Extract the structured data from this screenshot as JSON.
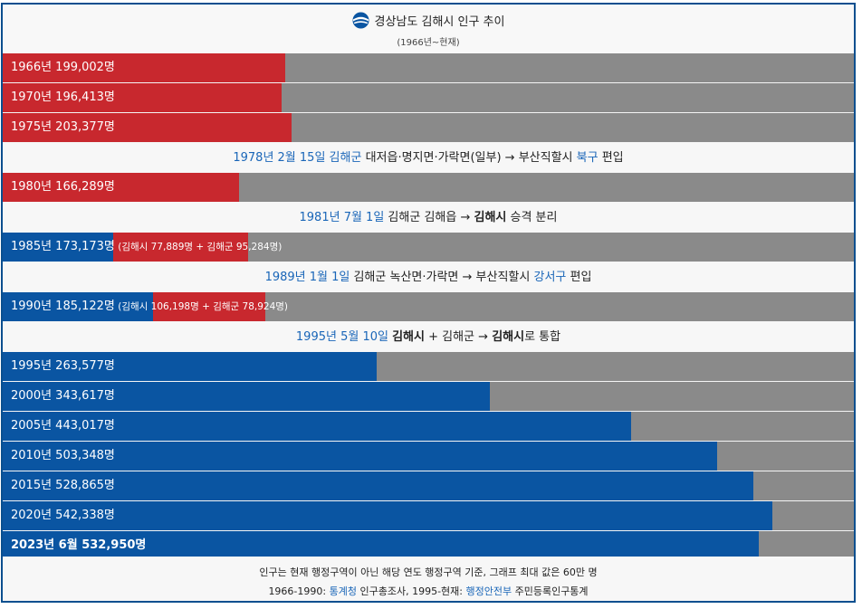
{
  "chart_data": {
    "type": "bar",
    "title": "경상남도 김해시 인구 추이",
    "subtitle": "(1966년~현재)",
    "xmax": 600000,
    "colors": {
      "gimhae_gun": "#c8282e",
      "gimhae_si": "#0a55a2",
      "track": "#8a8a8a"
    },
    "rows": [
      {
        "kind": "bar",
        "label": "1966년 199,002명",
        "value": 199002,
        "color": "#c8282e"
      },
      {
        "kind": "bar",
        "label": "1970년 196,413명",
        "value": 196413,
        "color": "#c8282e"
      },
      {
        "kind": "bar",
        "label": "1975년 203,377명",
        "value": 203377,
        "color": "#c8282e"
      },
      {
        "kind": "note",
        "parts": [
          {
            "t": "1978년 2월 15일",
            "c": "blue"
          },
          {
            "t": " "
          },
          {
            "t": "김해군",
            "c": "blue"
          },
          {
            "t": " 대저읍·명지면·가락면(일부) → 부산직할시 "
          },
          {
            "t": "북구",
            "c": "blue"
          },
          {
            "t": " 편입"
          }
        ]
      },
      {
        "kind": "bar",
        "label": "1980년 166,289명",
        "value": 166289,
        "color": "#c8282e"
      },
      {
        "kind": "note",
        "parts": [
          {
            "t": "1981년 7월 1일",
            "c": "blue"
          },
          {
            "t": " 김해군 김해읍 → "
          },
          {
            "t": "김해시",
            "c": "b"
          },
          {
            "t": " 승격 분리"
          }
        ]
      },
      {
        "kind": "stack",
        "label": "1985년 173,173명",
        "sub": "(김해시 77,889명 + 김해군 95,284명)",
        "segments": [
          {
            "value": 77889,
            "color": "#0a55a2"
          },
          {
            "value": 95284,
            "color": "#c8282e"
          }
        ]
      },
      {
        "kind": "note",
        "parts": [
          {
            "t": "1989년 1월 1일",
            "c": "blue"
          },
          {
            "t": " 김해군 녹산면·가락면 → 부산직할시 "
          },
          {
            "t": "강서구",
            "c": "blue"
          },
          {
            "t": " 편입"
          }
        ]
      },
      {
        "kind": "stack",
        "label": "1990년 185,122명",
        "sub": "(김해시 106,198명 + 김해군 78,924명)",
        "segments": [
          {
            "value": 106198,
            "color": "#0a55a2"
          },
          {
            "value": 78924,
            "color": "#c8282e"
          }
        ]
      },
      {
        "kind": "note",
        "parts": [
          {
            "t": "1995년 5월 10일",
            "c": "blue"
          },
          {
            "t": " "
          },
          {
            "t": "김해시",
            "c": "b"
          },
          {
            "t": " + 김해군 → "
          },
          {
            "t": "김해시",
            "c": "b"
          },
          {
            "t": "로 통합"
          }
        ]
      },
      {
        "kind": "bar",
        "label": "1995년 263,577명",
        "value": 263577,
        "color": "#0a55a2"
      },
      {
        "kind": "bar",
        "label": "2000년 343,617명",
        "value": 343617,
        "color": "#0a55a2"
      },
      {
        "kind": "bar",
        "label": "2005년 443,017명",
        "value": 443017,
        "color": "#0a55a2"
      },
      {
        "kind": "bar",
        "label": "2010년 503,348명",
        "value": 503348,
        "color": "#0a55a2"
      },
      {
        "kind": "bar",
        "label": "2015년 528,865명",
        "value": 528865,
        "color": "#0a55a2"
      },
      {
        "kind": "bar",
        "label": "2020년 542,338명",
        "value": 542338,
        "color": "#0a55a2"
      },
      {
        "kind": "bar",
        "label": "2023년 6월 532,950명",
        "value": 532950,
        "color": "#0a55a2",
        "bold": true
      }
    ]
  },
  "footer": {
    "line1": "인구는 현재 행정구역이 아닌 해당 연도 행정구역 기준, 그래프 최대 값은 60만 명",
    "line2_pre": "1966-1990: ",
    "line2_link1": "통계청",
    "line2_mid": " 인구총조사, 1995-현재: ",
    "line2_link2": "행정안전부",
    "line2_post": " 주민등록인구통계"
  }
}
